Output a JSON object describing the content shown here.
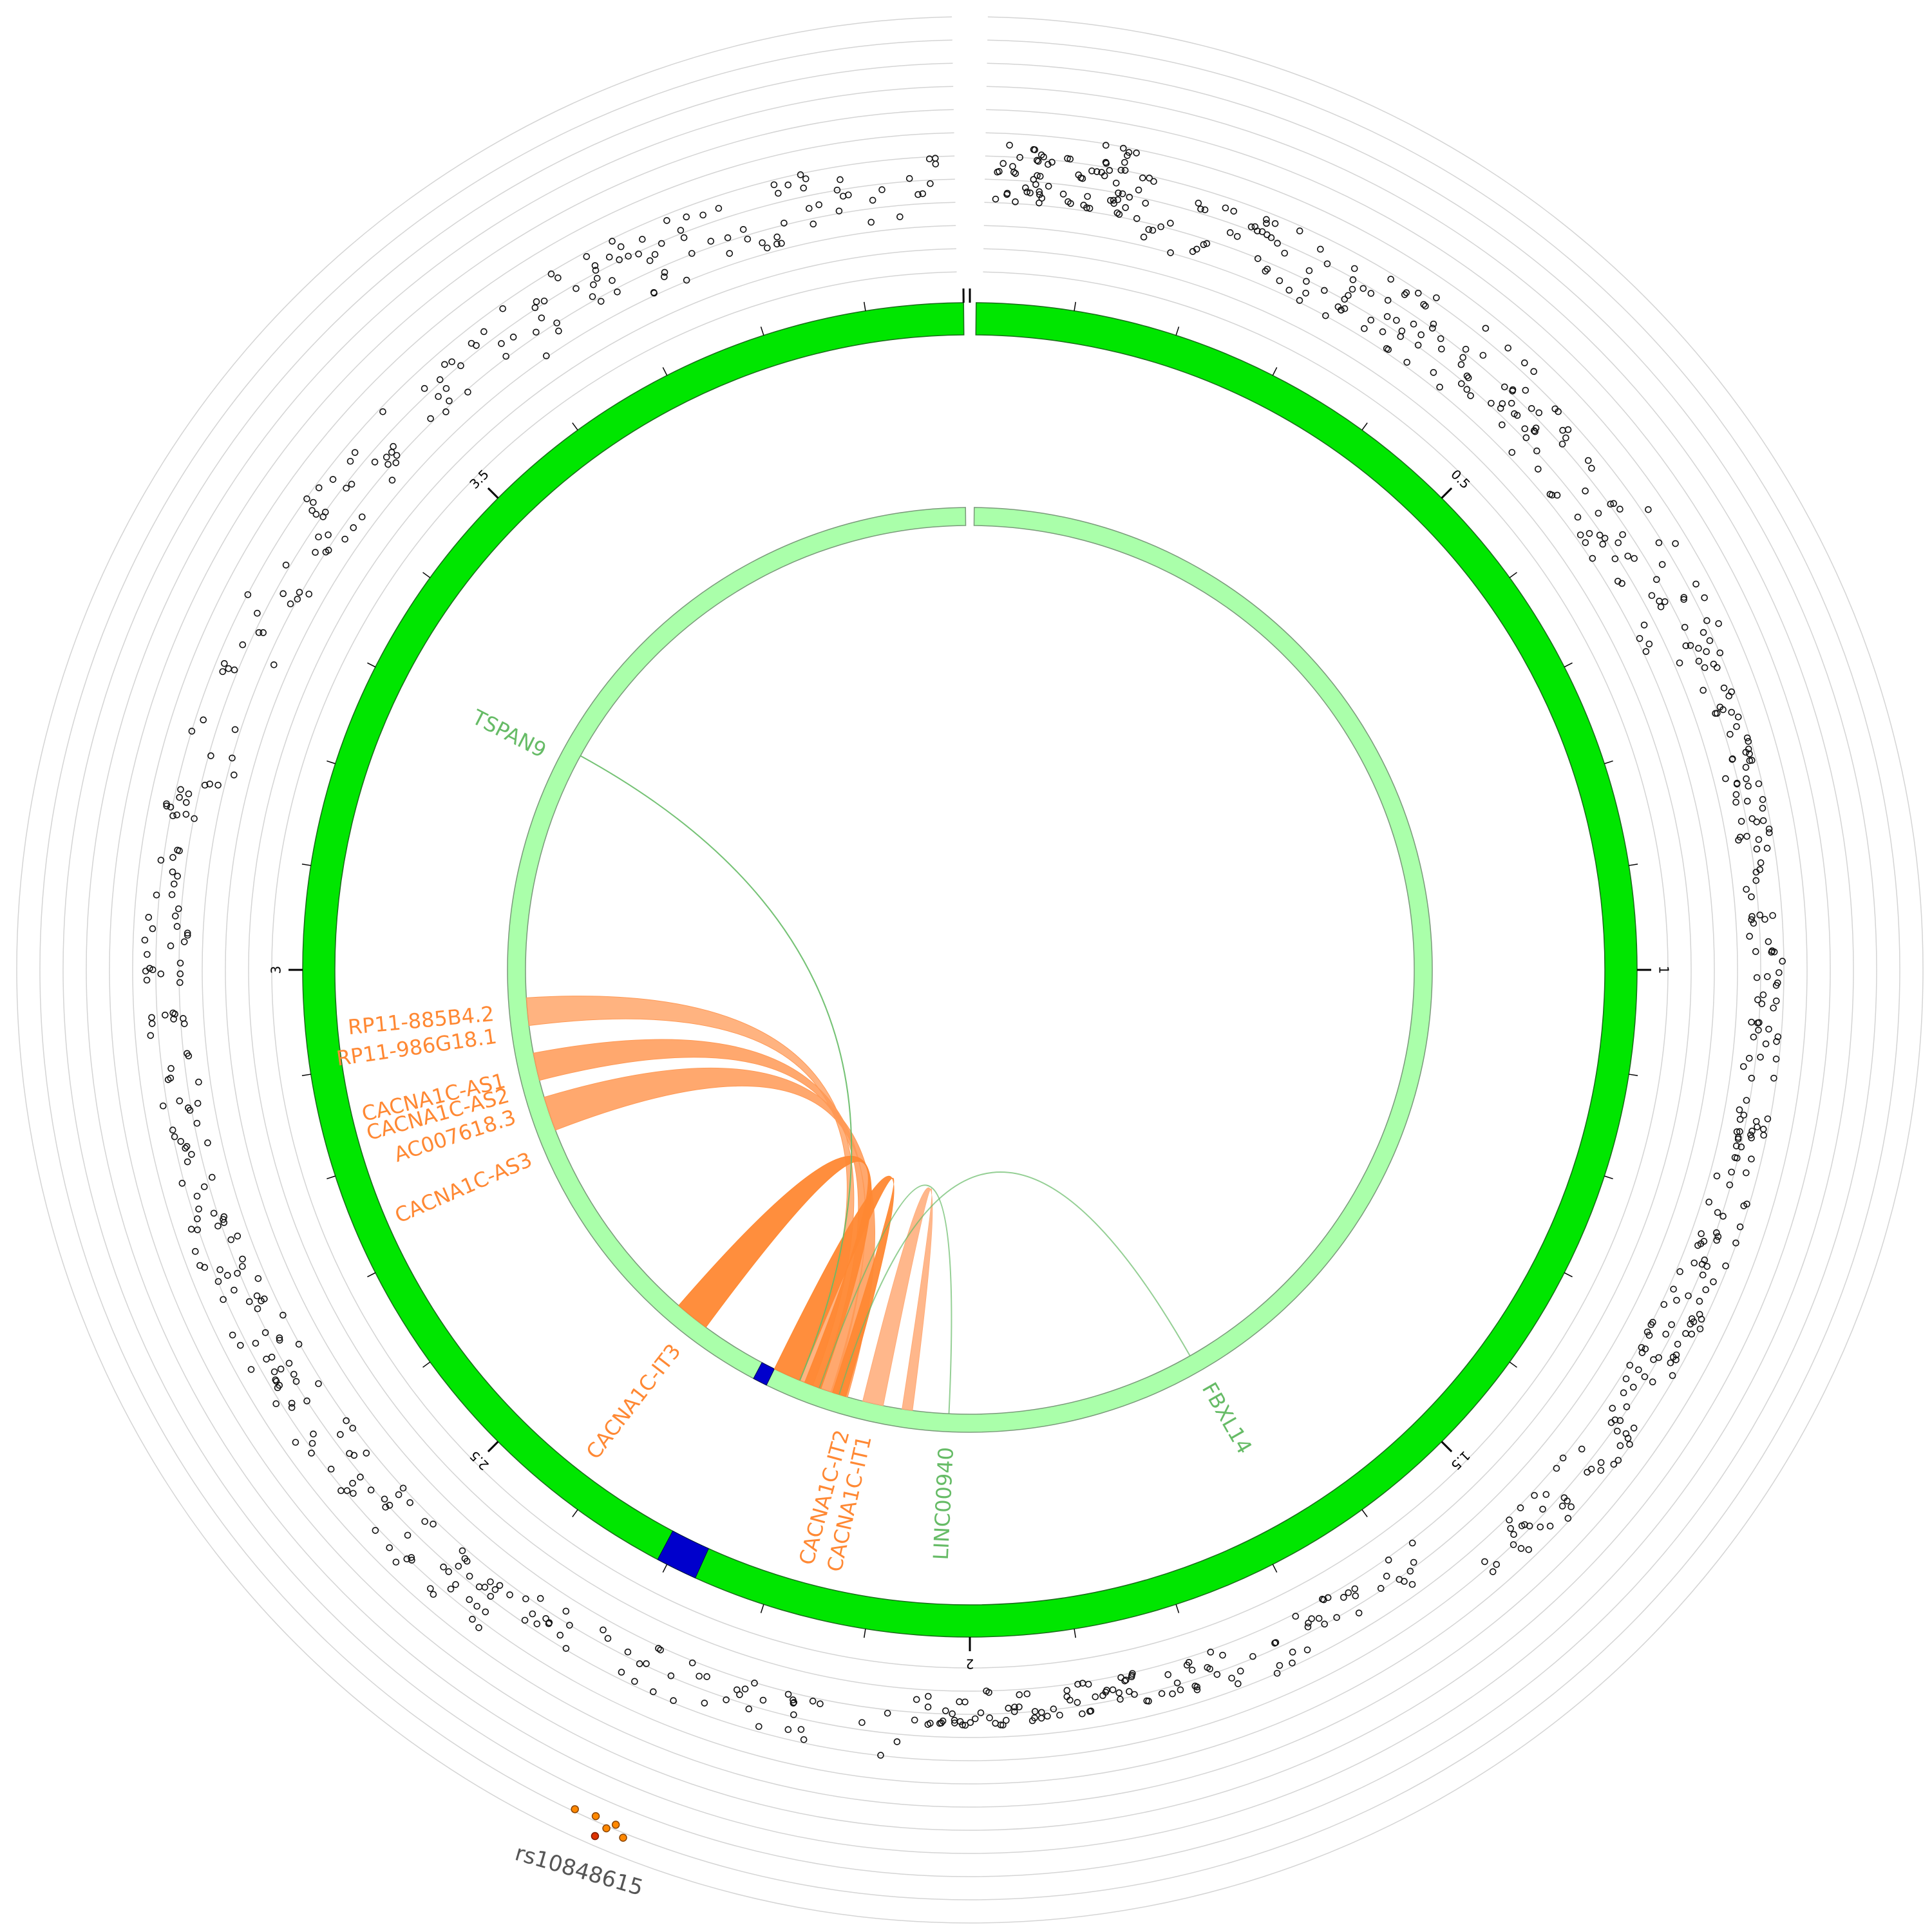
{
  "chart_data": {
    "type": "circos",
    "title": "",
    "scale_unit": "Mb",
    "region_length": 4.0,
    "ticks_major": [
      0,
      0.5,
      1,
      1.5,
      2,
      2.5,
      3,
      3.5
    ],
    "tick_labels": [
      "",
      "0.5",
      "1",
      "1.5",
      "2",
      "2.5",
      "3",
      "3.5"
    ],
    "outer_track": {
      "color": "#00e600",
      "name": "chromosome region"
    },
    "inner_track": {
      "color": "#aaffaa",
      "name": "gene track"
    },
    "highlight": {
      "color": "#0000cc",
      "start": 2.27,
      "end": 2.31
    },
    "genes": [
      {
        "name": "TSPAN9",
        "pos": 3.3,
        "color": "#66bb66"
      },
      {
        "name": "RP11-885B4.2",
        "pos": 2.94,
        "color": "#ff8833"
      },
      {
        "name": "RP11-986G18.1",
        "pos": 2.91,
        "color": "#ff8833"
      },
      {
        "name": "CACNA1C-AS1",
        "pos": 2.85,
        "color": "#ff8833"
      },
      {
        "name": "CACNA1C-AS2",
        "pos": 2.83,
        "color": "#ff8833"
      },
      {
        "name": "AC007618.3",
        "pos": 2.8,
        "color": "#ff8833"
      },
      {
        "name": "CACNA1C-AS3",
        "pos": 2.74,
        "color": "#ff8833"
      },
      {
        "name": "CACNA1C-IT3",
        "pos": 2.42,
        "color": "#ff8833"
      },
      {
        "name": "CACNA1C-IT2",
        "pos": 2.17,
        "color": "#ff8833"
      },
      {
        "name": "CACNA1C-IT1",
        "pos": 2.14,
        "color": "#ff8833"
      },
      {
        "name": "LINC00940",
        "pos": 2.03,
        "color": "#66bb66"
      },
      {
        "name": "FBXL14",
        "pos": 1.67,
        "color": "#66bb66"
      }
    ],
    "links": [
      {
        "from": 2.94,
        "to": 2.24,
        "color": "#ff9955",
        "opacity": 0.75,
        "width": 0.04
      },
      {
        "from": 2.86,
        "to": 2.21,
        "color": "#ff9955",
        "opacity": 0.85,
        "width": 0.04
      },
      {
        "from": 2.79,
        "to": 2.19,
        "color": "#ff9955",
        "opacity": 0.85,
        "width": 0.05
      },
      {
        "from": 2.43,
        "to": 2.23,
        "color": "#ff8833",
        "opacity": 0.95,
        "width": 0.05
      },
      {
        "from": 2.27,
        "to": 2.19,
        "color": "#ff8833",
        "opacity": 0.95,
        "width": 0.04
      },
      {
        "from": 2.14,
        "to": 2.09,
        "color": "#ffaa77",
        "opacity": 0.85,
        "width": 0.03
      },
      {
        "from": 3.32,
        "to": 2.25,
        "color": "#66bb66",
        "opacity": 0.9,
        "width": 0
      },
      {
        "from": 1.67,
        "to": 2.19,
        "color": "#66bb66",
        "opacity": 0.7,
        "width": 0
      },
      {
        "from": 2.03,
        "to": 2.22,
        "color": "#66bb66",
        "opacity": 0.7,
        "width": 0
      }
    ],
    "snp_track": {
      "rings": 12,
      "lead_snp": {
        "label": "rs10848615",
        "pos": 2.26,
        "value": 11.6,
        "color": "#dd3300"
      },
      "top_hits": [
        {
          "pos": 2.28,
          "value": 10.9
        },
        {
          "pos": 2.265,
          "value": 10.8
        },
        {
          "pos": 2.25,
          "value": 10.8
        },
        {
          "pos": 2.255,
          "value": 11.1
        },
        {
          "pos": 2.242,
          "value": 11.2
        }
      ],
      "hit_color": "#ff8800",
      "background_clusters": [
        {
          "from": 0.02,
          "to": 0.13,
          "min": 4.0,
          "max": 7.0,
          "n": 70
        },
        {
          "from": 0.13,
          "to": 0.35,
          "min": 3.0,
          "max": 6.0,
          "n": 60
        },
        {
          "from": 0.35,
          "to": 0.75,
          "min": 3.0,
          "max": 6.5,
          "n": 120
        },
        {
          "from": 0.75,
          "to": 1.15,
          "min": 4.5,
          "max": 6.0,
          "n": 110
        },
        {
          "from": 1.15,
          "to": 1.55,
          "min": 4.0,
          "max": 6.0,
          "n": 110
        },
        {
          "from": 1.55,
          "to": 1.8,
          "min": 2.0,
          "max": 4.0,
          "n": 40
        },
        {
          "from": 1.8,
          "to": 2.05,
          "min": 2.0,
          "max": 3.5,
          "n": 80
        },
        {
          "from": 2.05,
          "to": 2.4,
          "min": 3.0,
          "max": 5.0,
          "n": 50
        },
        {
          "from": 2.4,
          "to": 2.75,
          "min": 4.0,
          "max": 6.5,
          "n": 90
        },
        {
          "from": 2.75,
          "to": 3.15,
          "min": 4.5,
          "max": 6.5,
          "n": 90
        },
        {
          "from": 3.15,
          "to": 3.6,
          "min": 3.5,
          "max": 6.0,
          "n": 70
        },
        {
          "from": 3.6,
          "to": 3.98,
          "min": 3.0,
          "max": 6.0,
          "n": 80
        }
      ]
    }
  }
}
